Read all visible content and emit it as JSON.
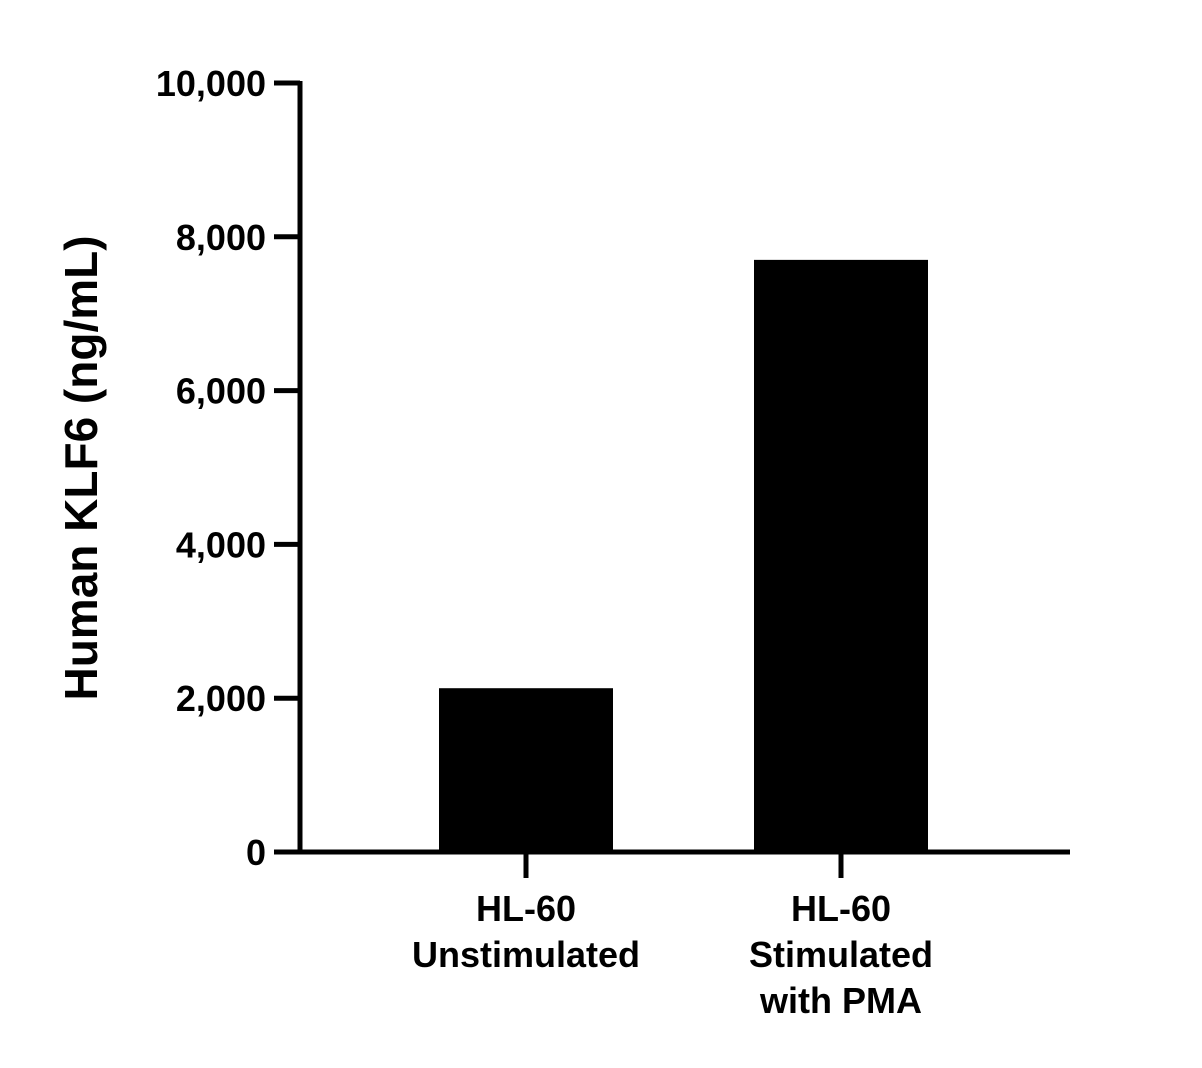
{
  "chart_data": {
    "type": "bar",
    "title": "",
    "xlabel": "",
    "ylabel": "Human KLF6 (ng/mL)",
    "ylim": [
      0,
      10000
    ],
    "yticks": [
      0,
      2000,
      4000,
      6000,
      8000,
      10000
    ],
    "ytick_labels": [
      "0",
      "2,000",
      "4,000",
      "6,000",
      "8,000",
      "10,000"
    ],
    "categories": [
      [
        "HL-60",
        "Unstimulated"
      ],
      [
        "HL-60",
        "Stimulated",
        "with PMA"
      ]
    ],
    "values": [
      2130,
      7700
    ],
    "grid": false,
    "legend": "none",
    "bar_color": "#000000",
    "axis_color": "#000000"
  }
}
